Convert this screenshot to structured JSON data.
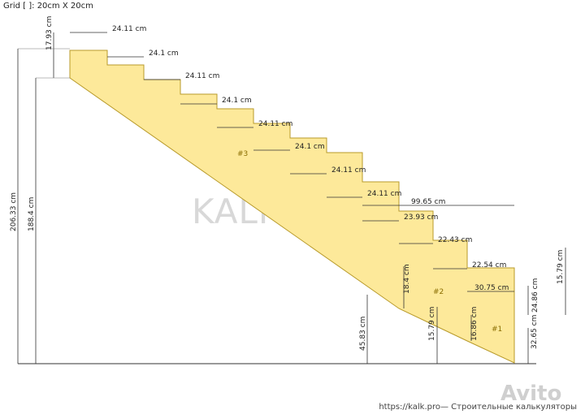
{
  "grid_label": "Grid [ ]: 20cm X 20cm",
  "watermark_center": "KALK.PRO",
  "watermark_avito": "Avito",
  "footer": "https://kalk.pro— Строительные калькуляторы",
  "colors": {
    "fill": "#fde99a",
    "stroke": "#b89a2a",
    "dim": "#333333"
  },
  "section_labels": [
    "#3",
    "#2",
    "#1"
  ],
  "treads": [
    "24.11 cm",
    "24.1 cm",
    "24.11 cm",
    "24.1 cm",
    "24.11 cm",
    "24.1 cm",
    "24.11 cm",
    "24.11 cm",
    "23.93 cm",
    "22.43 cm",
    "22.54 cm",
    "30.75 cm"
  ],
  "dims": {
    "top_riser": "17.93 cm",
    "overall_height": "206.33 cm",
    "flight_height": "188.4 cm",
    "landing_width": "99.65 cm",
    "seg2_height": "18.4 cm",
    "seg2_base": "45.83 cm",
    "seg1_low": "15.79 cm",
    "seg1_tread_h": "16.86 cm",
    "seg1_riser": "24.86 cm",
    "seg1_base": "32.65 cm",
    "right_riser": "15.79 cm"
  }
}
